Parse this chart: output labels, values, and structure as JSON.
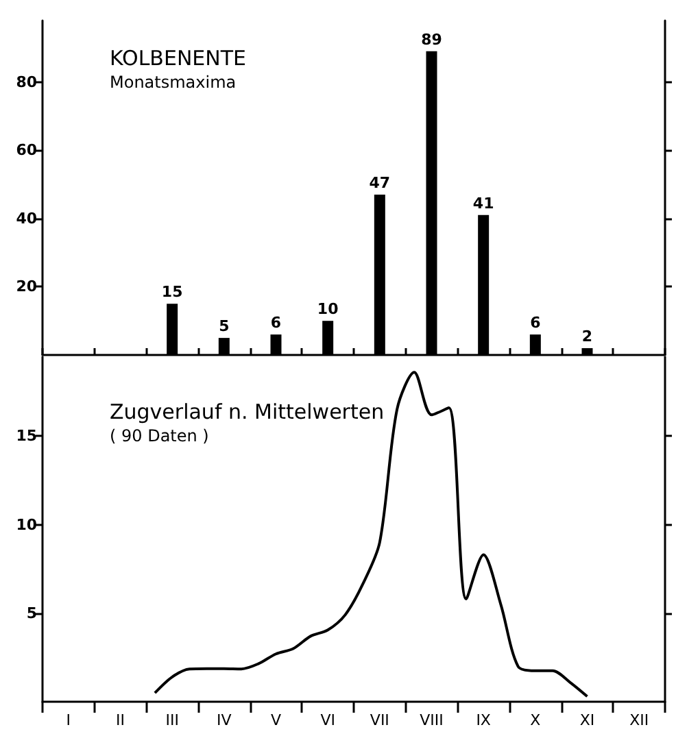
{
  "chart_data": [
    {
      "type": "bar",
      "title": "KOLBENENTE",
      "subtitle": "Monatsmaxima",
      "categories": [
        null,
        null,
        null,
        null,
        null,
        null,
        null,
        null,
        null,
        null,
        null,
        null
      ],
      "values": [
        null,
        null,
        15,
        5,
        6,
        10,
        47,
        89,
        41,
        6,
        2,
        null
      ],
      "color": "#000000",
      "data_labels": true,
      "ylim": [
        0,
        98
      ],
      "yticks": [
        20,
        40,
        60,
        80
      ],
      "tick_labels": "y"
    },
    {
      "type": "line",
      "title": "Zugverlauf n. Mittelwerten",
      "subtitle": "( 90 Daten )",
      "color": "#000000",
      "categories": [
        null,
        "I",
        null,
        null,
        "II",
        null,
        null,
        "III",
        null,
        null,
        "IV",
        null,
        null,
        "V",
        null,
        null,
        "VI",
        null,
        null,
        "VII",
        null,
        null,
        "VIII",
        null,
        null,
        "IX",
        null,
        null,
        "X",
        null,
        null,
        "XI",
        null,
        null,
        "XII",
        null
      ],
      "values": [
        null,
        null,
        null,
        null,
        null,
        null,
        0.5,
        1.4,
        1.85,
        1.87,
        1.87,
        1.85,
        2.15,
        2.7,
        3.0,
        3.7,
        4.05,
        4.9,
        6.6,
        9.0,
        16.5,
        18.6,
        16.2,
        16.6,
        5.8,
        8.3,
        5.5,
        2.0,
        1.75,
        1.75,
        1.1,
        0.3,
        null,
        null,
        null,
        null
      ],
      "marker": "none",
      "line_style": "solid",
      "ylim": [
        0,
        19.5
      ],
      "yticks": [
        5,
        10,
        15
      ]
    }
  ]
}
